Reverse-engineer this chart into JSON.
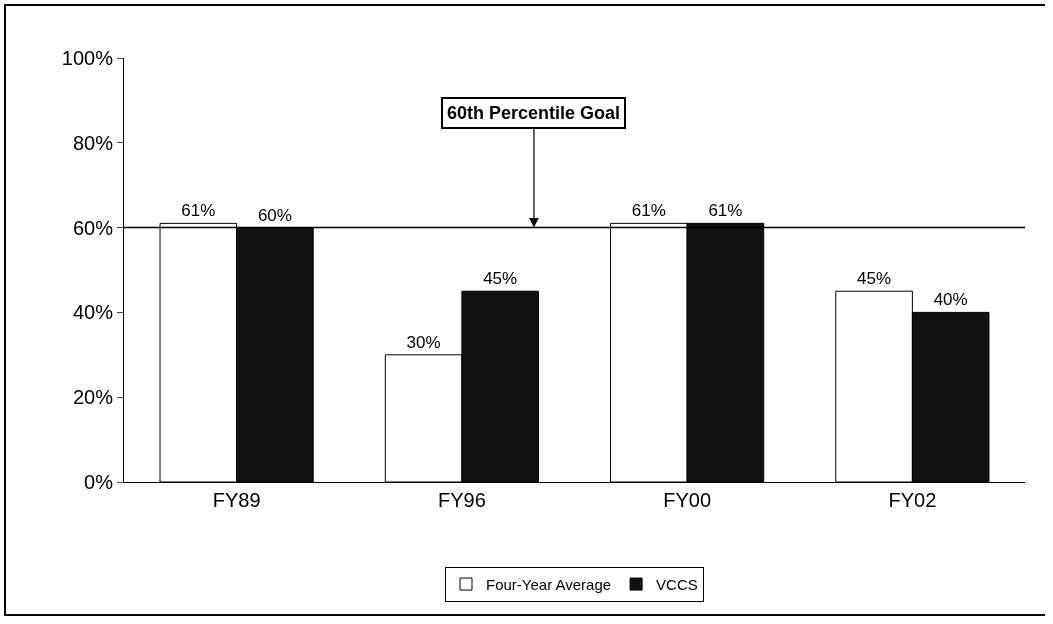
{
  "chart_data": {
    "type": "bar",
    "categories": [
      "FY89",
      "FY96",
      "FY00",
      "FY02"
    ],
    "series": [
      {
        "name": "Four-Year Average",
        "color": "#ffffff",
        "values": [
          61,
          30,
          61,
          45
        ],
        "value_labels": [
          "61%",
          "30%",
          "61%",
          "45%"
        ]
      },
      {
        "name": "VCCS",
        "color": "#111111",
        "values": [
          60,
          45,
          61,
          40
        ],
        "value_labels": [
          "60%",
          "45%",
          "61%",
          "40%"
        ]
      }
    ],
    "ylim": [
      0,
      100
    ],
    "yticks": [
      {
        "value": 0,
        "label": "0%"
      },
      {
        "value": 20,
        "label": "20%"
      },
      {
        "value": 40,
        "label": "40%"
      },
      {
        "value": 60,
        "label": "60%"
      },
      {
        "value": 80,
        "label": "80%"
      },
      {
        "value": 100,
        "label": "100%"
      }
    ],
    "ref_lines": [
      {
        "axis": "y",
        "value": 60,
        "label": "60th Percentile Goal",
        "color": "#000000"
      }
    ],
    "legend": "bottom"
  }
}
